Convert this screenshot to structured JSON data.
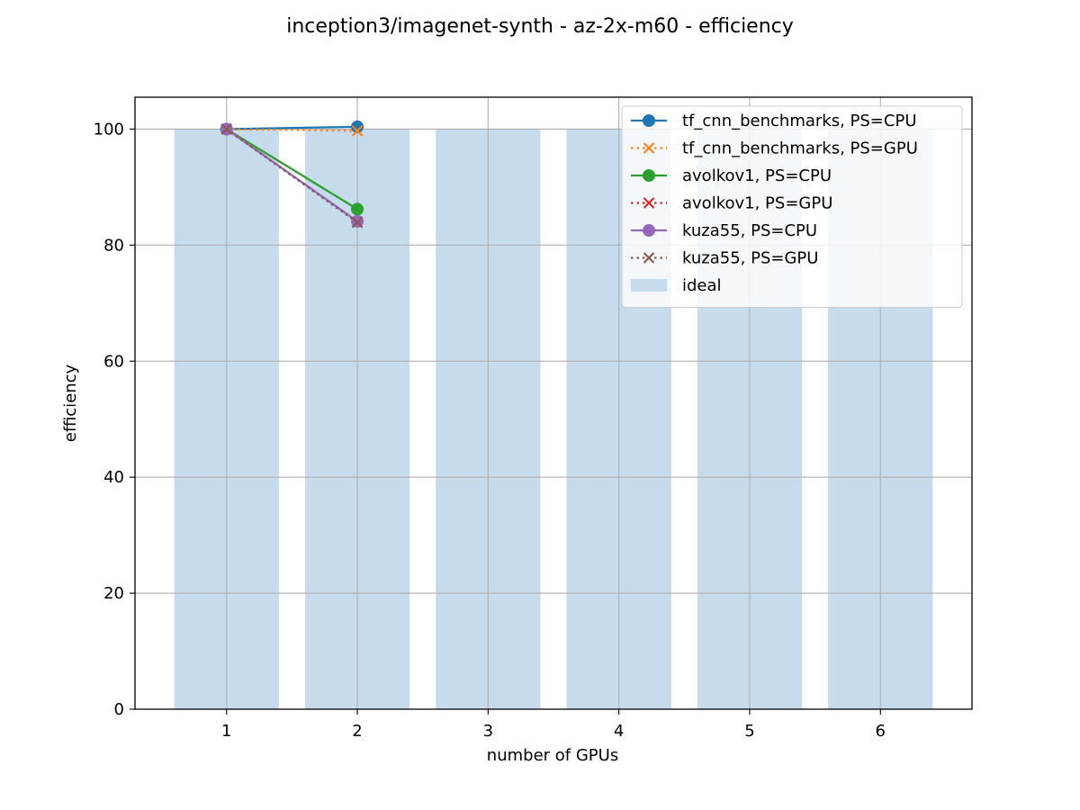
{
  "chart_data": {
    "type": "bar+line",
    "title": "inception3/imagenet-synth - az-2x-m60 - efficiency",
    "xlabel": "number of GPUs",
    "ylabel": "efficiency",
    "x_ticks": [
      1,
      2,
      3,
      4,
      5,
      6
    ],
    "y_ticks": [
      0,
      20,
      40,
      60,
      80,
      100
    ],
    "xlim": [
      0.3,
      6.7
    ],
    "ylim": [
      0,
      105.5
    ],
    "grid": true,
    "legend_position": "top-right",
    "bars": {
      "name": "ideal",
      "x": [
        1,
        2,
        3,
        4,
        5,
        6
      ],
      "values": [
        100,
        100,
        100,
        100,
        100,
        100
      ],
      "color": "#c6dbec"
    },
    "series": [
      {
        "name": "tf_cnn_benchmarks, PS=CPU",
        "x": [
          1,
          2
        ],
        "values": [
          100,
          100.4
        ],
        "color": "#1f77b4",
        "marker": "circle",
        "linestyle": "solid"
      },
      {
        "name": "tf_cnn_benchmarks, PS=GPU",
        "x": [
          1,
          2
        ],
        "values": [
          100,
          99.7
        ],
        "color": "#ff7f0e",
        "marker": "x",
        "linestyle": "dotted"
      },
      {
        "name": "avolkov1, PS=CPU",
        "x": [
          1,
          2
        ],
        "values": [
          100,
          86.2
        ],
        "color": "#2ca02c",
        "marker": "circle",
        "linestyle": "solid"
      },
      {
        "name": "avolkov1, PS=GPU",
        "x": [
          1,
          2
        ],
        "values": [
          100,
          84.0
        ],
        "color": "#d62728",
        "marker": "x",
        "linestyle": "dotted"
      },
      {
        "name": "kuza55, PS=CPU",
        "x": [
          1,
          2
        ],
        "values": [
          100,
          84.1
        ],
        "color": "#9467bd",
        "marker": "circle",
        "linestyle": "solid"
      },
      {
        "name": "kuza55, PS=GPU",
        "x": [
          1,
          2
        ],
        "values": [
          100,
          83.9
        ],
        "color": "#8c564b",
        "marker": "x",
        "linestyle": "dotted"
      }
    ]
  }
}
